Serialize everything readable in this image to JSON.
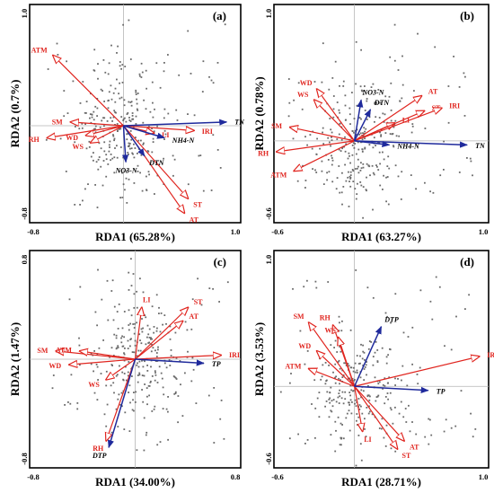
{
  "chart_data": [
    {
      "type": "scatter",
      "subtype": "rda-biplot",
      "panel_label": "(a)",
      "xlabel": "RDA1 (65.28%)",
      "ylabel": "RDA2 (0.7%)",
      "xlim": [
        -0.8,
        1.0
      ],
      "ylim": [
        -0.8,
        1.0
      ],
      "x_tick_labels": [
        "-0.8",
        "1.0"
      ],
      "y_tick_labels": [
        "-0.8",
        "1.0"
      ],
      "origin": [
        0,
        0
      ],
      "response_vectors": [
        {
          "label": "TN",
          "x": 0.88,
          "y": 0.03
        },
        {
          "label": "NH4-N",
          "x": 0.35,
          "y": -0.1
        },
        {
          "label": "DTN",
          "x": 0.18,
          "y": -0.25
        },
        {
          "label": "NO3-N",
          "x": 0.02,
          "y": -0.3
        }
      ],
      "explanatory_vectors": [
        {
          "label": "ATM",
          "x": -0.6,
          "y": 0.58
        },
        {
          "label": "SM",
          "x": -0.45,
          "y": 0.03
        },
        {
          "label": "RH",
          "x": -0.65,
          "y": -0.1
        },
        {
          "label": "WD",
          "x": -0.32,
          "y": -0.08
        },
        {
          "label": "WS",
          "x": -0.28,
          "y": -0.14
        },
        {
          "label": "LI",
          "x": 0.26,
          "y": -0.06
        },
        {
          "label": "IRI",
          "x": 0.6,
          "y": -0.04
        },
        {
          "label": "ST",
          "x": 0.55,
          "y": -0.6
        },
        {
          "label": "AT",
          "x": 0.52,
          "y": -0.72
        }
      ]
    },
    {
      "type": "scatter",
      "subtype": "rda-biplot",
      "panel_label": "(b)",
      "xlabel": "RDA1 (63.27%)",
      "ylabel": "RDA2 (0.78%)",
      "xlim": [
        -0.6,
        1.0
      ],
      "ylim": [
        -0.6,
        1.0
      ],
      "x_tick_labels": [
        "-0.6",
        "1.0"
      ],
      "y_tick_labels": [
        "-0.6",
        "1.0"
      ],
      "origin": [
        0,
        0
      ],
      "response_vectors": [
        {
          "label": "TN",
          "x": 0.84,
          "y": -0.03
        },
        {
          "label": "NH4-N",
          "x": 0.26,
          "y": -0.03
        },
        {
          "label": "DTN",
          "x": 0.12,
          "y": 0.23
        },
        {
          "label": "NO3-N",
          "x": 0.05,
          "y": 0.3
        }
      ],
      "explanatory_vectors": [
        {
          "label": "WD",
          "x": -0.28,
          "y": 0.38
        },
        {
          "label": "WS",
          "x": -0.3,
          "y": 0.3
        },
        {
          "label": "SM",
          "x": -0.48,
          "y": 0.1
        },
        {
          "label": "RH",
          "x": -0.58,
          "y": -0.08
        },
        {
          "label": "ATM",
          "x": -0.45,
          "y": -0.22
        },
        {
          "label": "LI",
          "x": 0.3,
          "y": 0.13
        },
        {
          "label": "ST",
          "x": 0.52,
          "y": 0.22
        },
        {
          "label": "IRI",
          "x": 0.65,
          "y": 0.24
        },
        {
          "label": "AT",
          "x": 0.5,
          "y": 0.33
        }
      ]
    },
    {
      "type": "scatter",
      "subtype": "rda-biplot",
      "panel_label": "(c)",
      "xlabel": "RDA1 (34.00%)",
      "ylabel": "RDA2 (1.47%)",
      "xlim": [
        -0.8,
        0.8
      ],
      "ylim": [
        -0.8,
        0.8
      ],
      "x_tick_labels": [
        "-0.8",
        "0.8"
      ],
      "y_tick_labels": [
        "-0.8",
        "0.8"
      ],
      "origin": [
        0,
        0
      ],
      "response_vectors": [
        {
          "label": "TP",
          "x": 0.52,
          "y": -0.03
        },
        {
          "label": "DTP",
          "x": -0.2,
          "y": -0.65
        }
      ],
      "explanatory_vectors": [
        {
          "label": "LI",
          "x": 0.05,
          "y": 0.38
        },
        {
          "label": "ST",
          "x": 0.4,
          "y": 0.38
        },
        {
          "label": "AT",
          "x": 0.36,
          "y": 0.28
        },
        {
          "label": "IRI",
          "x": 0.65,
          "y": 0.03
        },
        {
          "label": "SM",
          "x": -0.6,
          "y": 0.06
        },
        {
          "label": "ATM",
          "x": -0.42,
          "y": 0.06
        },
        {
          "label": "WD",
          "x": -0.5,
          "y": -0.04
        },
        {
          "label": "WS",
          "x": -0.22,
          "y": -0.15
        },
        {
          "label": "RH",
          "x": -0.22,
          "y": -0.6
        }
      ]
    },
    {
      "type": "scatter",
      "subtype": "rda-biplot",
      "panel_label": "(d)",
      "xlabel": "RDA1 (28.71%)",
      "ylabel": "RDA2 (3.53%)",
      "xlim": [
        -0.6,
        1.0
      ],
      "ylim": [
        -0.6,
        1.0
      ],
      "x_tick_labels": [
        "-0.6",
        "1.0"
      ],
      "y_tick_labels": [
        "-0.6",
        "1.0"
      ],
      "origin": [
        0,
        0
      ],
      "response_vectors": [
        {
          "label": "TP",
          "x": 0.55,
          "y": -0.03
        },
        {
          "label": "DTP",
          "x": 0.2,
          "y": 0.44
        }
      ],
      "explanatory_vectors": [
        {
          "label": "SM",
          "x": -0.34,
          "y": 0.47
        },
        {
          "label": "RH",
          "x": -0.16,
          "y": 0.45
        },
        {
          "label": "WS",
          "x": -0.12,
          "y": 0.36
        },
        {
          "label": "WD",
          "x": -0.28,
          "y": 0.26
        },
        {
          "label": "ATM",
          "x": -0.34,
          "y": 0.13
        },
        {
          "label": "IRI",
          "x": 0.93,
          "y": 0.22
        },
        {
          "label": "LI",
          "x": 0.06,
          "y": -0.33
        },
        {
          "label": "AT",
          "x": 0.37,
          "y": -0.4
        },
        {
          "label": "ST",
          "x": 0.32,
          "y": -0.46
        }
      ]
    }
  ]
}
